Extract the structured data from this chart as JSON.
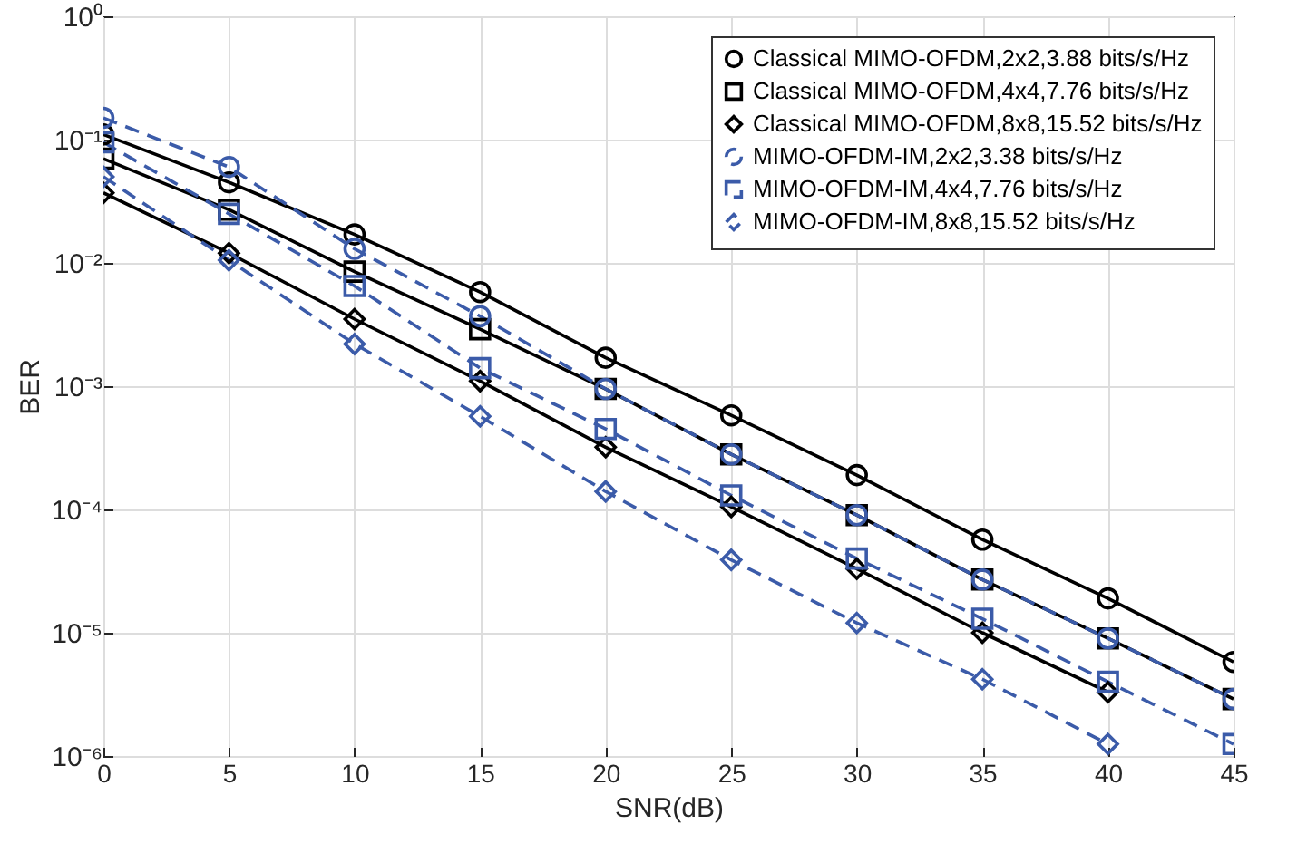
{
  "chart_data": {
    "type": "line",
    "xlabel": "SNR(dB)",
    "ylabel": "BER",
    "log": "y",
    "grid": true,
    "legend": "top right",
    "x": [
      0,
      5,
      10,
      15,
      20,
      25,
      30,
      35,
      40,
      45
    ],
    "xlim": [
      0,
      45
    ],
    "xticks": [
      0,
      5,
      10,
      15,
      20,
      25,
      30,
      35,
      40,
      45
    ],
    "ylim": [
      1e-06,
      1
    ],
    "yticks": [
      {
        "value": 1e-06,
        "label": "10⁻⁶"
      },
      {
        "value": 1e-05,
        "label": "10⁻⁵"
      },
      {
        "value": 0.0001,
        "label": "10⁻⁴"
      },
      {
        "value": 0.001,
        "label": "10⁻³"
      },
      {
        "value": 0.01,
        "label": "10⁻²"
      },
      {
        "value": 0.1,
        "label": "10⁻¹"
      },
      {
        "value": 1,
        "label": "10⁰"
      }
    ],
    "series": [
      {
        "name": "Classical MIMO-OFDM,2x2,3.88 bits/s/Hz",
        "color": "#000000",
        "marker": "circle",
        "line_style": "solid",
        "values": [
          0.11,
          0.045,
          0.017,
          0.0058,
          0.0017,
          0.00058,
          0.00019,
          5.7e-05,
          1.9e-05,
          5.8e-06
        ]
      },
      {
        "name": "Classical MIMO-OFDM,4x4,7.76 bits/s/Hz",
        "color": "#000000",
        "marker": "square",
        "line_style": "solid",
        "values": [
          0.07,
          0.027,
          0.0085,
          0.0029,
          0.00095,
          0.00028,
          9e-05,
          2.7e-05,
          9e-06,
          2.9e-06
        ]
      },
      {
        "name": "Classical MIMO-OFDM,8x8,15.52 bits/s/Hz",
        "color": "#000000",
        "marker": "diamond",
        "line_style": "solid",
        "values": [
          0.037,
          0.012,
          0.0035,
          0.0011,
          0.00032,
          0.000105,
          3.3e-05,
          1e-05,
          3.3e-06,
          null
        ]
      },
      {
        "name": "MIMO-OFDM-IM,2x2,3.38 bits/s/Hz",
        "color": "#3b5ba9",
        "marker": "circle",
        "line_style": "dashed",
        "values": [
          0.15,
          0.06,
          0.013,
          0.0037,
          0.00095,
          0.00028,
          9e-05,
          2.7e-05,
          9e-06,
          2.9e-06
        ]
      },
      {
        "name": "MIMO-OFDM-IM,4x4,7.76 bits/s/Hz",
        "color": "#3b5ba9",
        "marker": "square",
        "line_style": "dashed",
        "values": [
          0.095,
          0.025,
          0.0065,
          0.0014,
          0.00045,
          0.00013,
          4e-05,
          1.3e-05,
          4e-06,
          1.25e-06
        ]
      },
      {
        "name": "MIMO-OFDM-IM,8x8,15.52 bits/s/Hz",
        "color": "#3b5ba9",
        "marker": "diamond",
        "line_style": "dashed",
        "values": [
          0.05,
          0.0105,
          0.0022,
          0.00057,
          0.00014,
          3.9e-05,
          1.2e-05,
          4.2e-06,
          1.25e-06,
          null
        ]
      }
    ]
  }
}
